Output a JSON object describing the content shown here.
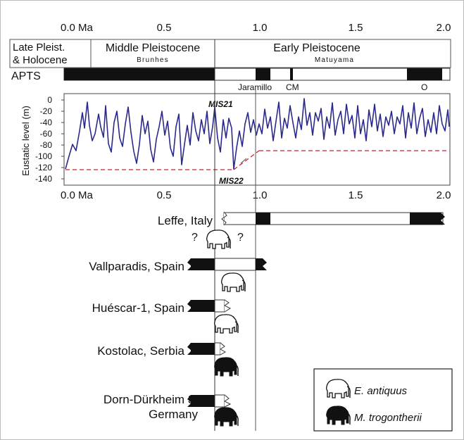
{
  "axis_top": {
    "ticks": [
      "0.0 Ma",
      "0.5",
      "1.0",
      "1.5",
      "2.0"
    ]
  },
  "axis_bottom": {
    "ticks": [
      "0.0 Ma",
      "0.5",
      "1.0",
      "1.5",
      "2.0"
    ]
  },
  "epochs": {
    "late": [
      "Late Pleist.",
      "& Holocene"
    ],
    "middle": "Middle Pleistocene",
    "early": "Early Pleistocene"
  },
  "chrons": {
    "brunhes": "Brunhes",
    "matuyama": "Matuyama"
  },
  "apts": {
    "label": "APTS",
    "subchrons": [
      "Jaramillo",
      "CM",
      "O"
    ]
  },
  "eustatic": {
    "ylabel": "Eustatic level (m)",
    "yticks": [
      "0",
      "-20",
      "-40",
      "-60",
      "-80",
      "-100",
      "-120",
      "-140"
    ],
    "mis21": "MIS21",
    "mis22": "MIS22",
    "line_color": "#2b2a8c",
    "dashed_color": "#cc2233"
  },
  "sites": [
    {
      "name": "Leffe, Italy"
    },
    {
      "name": "Vallparadis, Spain"
    },
    {
      "name": "Huéscar-1, Spain"
    },
    {
      "name": "Kostolac, Serbia"
    },
    {
      "name": "Dorn-Dürkheim 3,",
      "name2": "Germany"
    }
  ],
  "question_marks": [
    "?",
    "?"
  ],
  "legend": {
    "e_antiquus": "E. antiquus",
    "m_trogontherii": "M. trogontherii"
  }
}
